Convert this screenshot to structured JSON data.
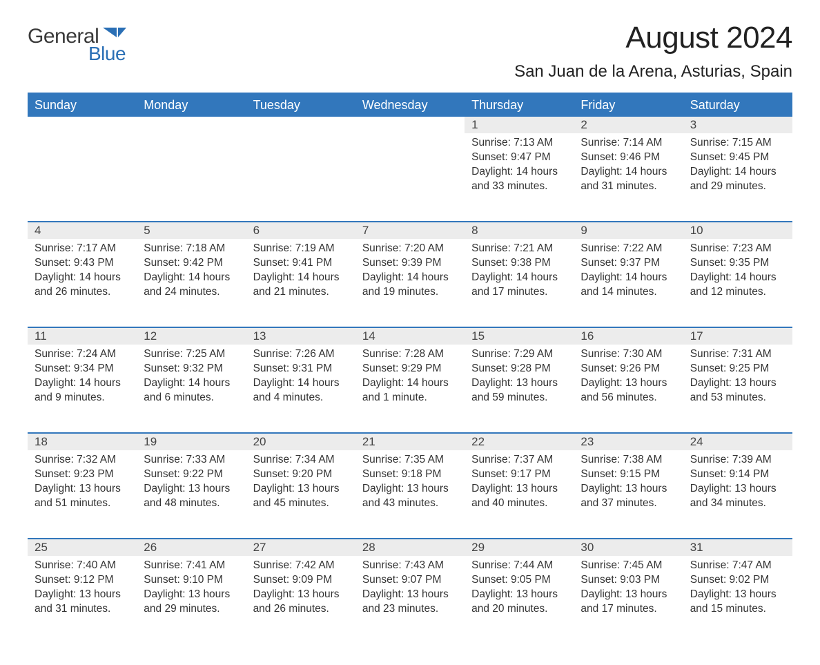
{
  "logo": {
    "text1": "General",
    "text2": "Blue",
    "flag_color": "#2a6fb5"
  },
  "title": "August 2024",
  "location": "San Juan de la Arena, Asturias, Spain",
  "colors": {
    "header_bg": "#3277bc",
    "header_text": "#ffffff",
    "daynum_bg": "#ececec",
    "row_border": "#3277bc",
    "body_text": "#333333"
  },
  "typography": {
    "title_fontsize": 44,
    "location_fontsize": 24,
    "weekday_fontsize": 18,
    "daynum_fontsize": 17,
    "cell_fontsize": 15.5
  },
  "weekdays": [
    "Sunday",
    "Monday",
    "Tuesday",
    "Wednesday",
    "Thursday",
    "Friday",
    "Saturday"
  ],
  "labels": {
    "sunrise": "Sunrise:",
    "sunset": "Sunset:",
    "daylight": "Daylight:"
  },
  "weeks": [
    [
      null,
      null,
      null,
      null,
      {
        "day": "1",
        "sunrise": "7:13 AM",
        "sunset": "9:47 PM",
        "daylight": "14 hours and 33 minutes."
      },
      {
        "day": "2",
        "sunrise": "7:14 AM",
        "sunset": "9:46 PM",
        "daylight": "14 hours and 31 minutes."
      },
      {
        "day": "3",
        "sunrise": "7:15 AM",
        "sunset": "9:45 PM",
        "daylight": "14 hours and 29 minutes."
      }
    ],
    [
      {
        "day": "4",
        "sunrise": "7:17 AM",
        "sunset": "9:43 PM",
        "daylight": "14 hours and 26 minutes."
      },
      {
        "day": "5",
        "sunrise": "7:18 AM",
        "sunset": "9:42 PM",
        "daylight": "14 hours and 24 minutes."
      },
      {
        "day": "6",
        "sunrise": "7:19 AM",
        "sunset": "9:41 PM",
        "daylight": "14 hours and 21 minutes."
      },
      {
        "day": "7",
        "sunrise": "7:20 AM",
        "sunset": "9:39 PM",
        "daylight": "14 hours and 19 minutes."
      },
      {
        "day": "8",
        "sunrise": "7:21 AM",
        "sunset": "9:38 PM",
        "daylight": "14 hours and 17 minutes."
      },
      {
        "day": "9",
        "sunrise": "7:22 AM",
        "sunset": "9:37 PM",
        "daylight": "14 hours and 14 minutes."
      },
      {
        "day": "10",
        "sunrise": "7:23 AM",
        "sunset": "9:35 PM",
        "daylight": "14 hours and 12 minutes."
      }
    ],
    [
      {
        "day": "11",
        "sunrise": "7:24 AM",
        "sunset": "9:34 PM",
        "daylight": "14 hours and 9 minutes."
      },
      {
        "day": "12",
        "sunrise": "7:25 AM",
        "sunset": "9:32 PM",
        "daylight": "14 hours and 6 minutes."
      },
      {
        "day": "13",
        "sunrise": "7:26 AM",
        "sunset": "9:31 PM",
        "daylight": "14 hours and 4 minutes."
      },
      {
        "day": "14",
        "sunrise": "7:28 AM",
        "sunset": "9:29 PM",
        "daylight": "14 hours and 1 minute."
      },
      {
        "day": "15",
        "sunrise": "7:29 AM",
        "sunset": "9:28 PM",
        "daylight": "13 hours and 59 minutes."
      },
      {
        "day": "16",
        "sunrise": "7:30 AM",
        "sunset": "9:26 PM",
        "daylight": "13 hours and 56 minutes."
      },
      {
        "day": "17",
        "sunrise": "7:31 AM",
        "sunset": "9:25 PM",
        "daylight": "13 hours and 53 minutes."
      }
    ],
    [
      {
        "day": "18",
        "sunrise": "7:32 AM",
        "sunset": "9:23 PM",
        "daylight": "13 hours and 51 minutes."
      },
      {
        "day": "19",
        "sunrise": "7:33 AM",
        "sunset": "9:22 PM",
        "daylight": "13 hours and 48 minutes."
      },
      {
        "day": "20",
        "sunrise": "7:34 AM",
        "sunset": "9:20 PM",
        "daylight": "13 hours and 45 minutes."
      },
      {
        "day": "21",
        "sunrise": "7:35 AM",
        "sunset": "9:18 PM",
        "daylight": "13 hours and 43 minutes."
      },
      {
        "day": "22",
        "sunrise": "7:37 AM",
        "sunset": "9:17 PM",
        "daylight": "13 hours and 40 minutes."
      },
      {
        "day": "23",
        "sunrise": "7:38 AM",
        "sunset": "9:15 PM",
        "daylight": "13 hours and 37 minutes."
      },
      {
        "day": "24",
        "sunrise": "7:39 AM",
        "sunset": "9:14 PM",
        "daylight": "13 hours and 34 minutes."
      }
    ],
    [
      {
        "day": "25",
        "sunrise": "7:40 AM",
        "sunset": "9:12 PM",
        "daylight": "13 hours and 31 minutes."
      },
      {
        "day": "26",
        "sunrise": "7:41 AM",
        "sunset": "9:10 PM",
        "daylight": "13 hours and 29 minutes."
      },
      {
        "day": "27",
        "sunrise": "7:42 AM",
        "sunset": "9:09 PM",
        "daylight": "13 hours and 26 minutes."
      },
      {
        "day": "28",
        "sunrise": "7:43 AM",
        "sunset": "9:07 PM",
        "daylight": "13 hours and 23 minutes."
      },
      {
        "day": "29",
        "sunrise": "7:44 AM",
        "sunset": "9:05 PM",
        "daylight": "13 hours and 20 minutes."
      },
      {
        "day": "30",
        "sunrise": "7:45 AM",
        "sunset": "9:03 PM",
        "daylight": "13 hours and 17 minutes."
      },
      {
        "day": "31",
        "sunrise": "7:47 AM",
        "sunset": "9:02 PM",
        "daylight": "13 hours and 15 minutes."
      }
    ]
  ]
}
